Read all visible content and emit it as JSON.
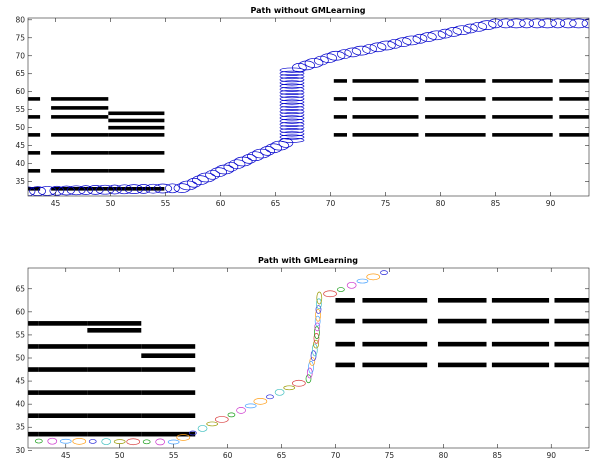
{
  "chart_data": [
    {
      "type": "scatter",
      "title": "Path without GMLearning",
      "xlabel": "",
      "ylabel": "",
      "xlim": [
        42.5,
        93.5
      ],
      "ylim": [
        31,
        80.5
      ],
      "xticks": [
        45,
        50,
        55,
        60,
        65,
        70,
        75,
        80,
        85,
        90
      ],
      "yticks": [
        35,
        40,
        45,
        50,
        55,
        60,
        65,
        70,
        75,
        80
      ],
      "grid": false,
      "obstacles": [
        {
          "x0": 42.5,
          "x1": 43.6,
          "y": [
            32.5,
            33.5,
            37.5,
            38.5,
            42.5,
            43.5,
            47.5,
            48.5,
            52.5,
            53.5,
            57.5,
            58.5,
            60.5
          ]
        },
        {
          "x0": 44.6,
          "x1": 49.8,
          "y": [
            32.5,
            33.5,
            37.5,
            38.5,
            42.5,
            43.5,
            47.5,
            48.5,
            52.5,
            53.5,
            55.0,
            56.0,
            57.5,
            58.5,
            59.5
          ]
        },
        {
          "x0": 49.8,
          "x1": 54.9,
          "y": [
            32.5,
            33.5,
            37.5,
            38.5,
            42.5,
            43.5,
            47.5,
            48.5,
            49.5,
            50.5,
            51.5,
            52.5,
            53.5,
            54.5
          ]
        },
        {
          "x0": 70.3,
          "x1": 71.5,
          "y": [
            47.5,
            48.5,
            52.5,
            53.5,
            57.5,
            58.5,
            62.5,
            63.5,
            65.0
          ]
        },
        {
          "x0": 72.0,
          "x1": 78.0,
          "y": [
            47.5,
            48.5,
            52.5,
            53.5,
            57.5,
            58.5,
            62.5,
            63.5,
            65.0
          ]
        },
        {
          "x0": 78.6,
          "x1": 84.1,
          "y": [
            47.5,
            48.5,
            52.5,
            53.5,
            57.5,
            58.5,
            62.5,
            63.5,
            65.0
          ]
        },
        {
          "x0": 84.7,
          "x1": 90.2,
          "y": [
            47.5,
            48.5,
            52.5,
            53.5,
            57.5,
            58.5,
            62.5,
            63.5,
            65.0
          ]
        },
        {
          "x0": 90.8,
          "x1": 93.5,
          "y": [
            47.5,
            48.5,
            52.5,
            53.5,
            57.5,
            58.5,
            62.5,
            63.5,
            65.0
          ]
        }
      ],
      "path": [
        [
          42.5,
          32.3
        ],
        [
          56.5,
          33.2
        ],
        [
          66.5,
          46.5
        ],
        [
          66.5,
          66.0
        ],
        [
          70.5,
          70.0
        ],
        [
          85.0,
          79.0
        ],
        [
          93.5,
          79.0
        ]
      ],
      "color": "#0000cc"
    },
    {
      "type": "scatter",
      "title": "Path with GMLearning",
      "xlabel": "",
      "ylabel": "",
      "xlim": [
        41.5,
        93.5
      ],
      "ylim": [
        30.5,
        69.5
      ],
      "xticks": [
        45,
        50,
        55,
        60,
        65,
        70,
        75,
        80,
        85,
        90
      ],
      "yticks": [
        30,
        35,
        40,
        45,
        50,
        55,
        60,
        65
      ],
      "grid": false,
      "obstacles": [
        {
          "x0": 41.5,
          "x1": 42.5,
          "y": [
            33.0,
            34.0,
            37.0,
            38.0,
            42.0,
            43.0,
            47.0,
            48.0,
            52.0,
            53.0,
            57.0,
            58.0,
            61.0
          ]
        },
        {
          "x0": 42.5,
          "x1": 47.0,
          "y": [
            33.0,
            34.0,
            37.0,
            38.0,
            42.0,
            43.0,
            47.0,
            48.0,
            52.0,
            53.0,
            57.0,
            58.0,
            61.0
          ]
        },
        {
          "x0": 47.0,
          "x1": 52.0,
          "y": [
            33.0,
            34.0,
            37.0,
            38.0,
            42.0,
            43.0,
            47.0,
            48.0,
            52.0,
            53.0,
            55.5,
            56.5,
            57.0,
            58.0
          ]
        },
        {
          "x0": 52.0,
          "x1": 57.0,
          "y": [
            33.0,
            34.0,
            37.0,
            38.0,
            42.0,
            43.0,
            47.0,
            48.0,
            50.0,
            51.0,
            52.0,
            53.0
          ]
        },
        {
          "x0": 70.0,
          "x1": 71.8,
          "y": [
            48.0,
            49.0,
            52.5,
            53.5,
            57.5,
            58.5,
            62.0,
            63.0,
            64.5
          ]
        },
        {
          "x0": 72.5,
          "x1": 78.5,
          "y": [
            48.0,
            49.0,
            52.5,
            53.5,
            57.5,
            58.5,
            62.0,
            63.0,
            64.5
          ]
        },
        {
          "x0": 79.5,
          "x1": 84.0,
          "y": [
            48.0,
            49.0,
            52.5,
            53.5,
            57.5,
            58.5,
            62.0,
            63.0,
            64.5
          ]
        },
        {
          "x0": 84.5,
          "x1": 89.8,
          "y": [
            48.0,
            49.0,
            52.5,
            53.5,
            57.5,
            58.5,
            62.0,
            63.0,
            64.5
          ]
        },
        {
          "x0": 90.3,
          "x1": 93.5,
          "y": [
            48.0,
            49.0,
            52.5,
            53.5,
            57.5,
            58.5,
            62.0,
            63.0,
            64.5
          ]
        }
      ],
      "path": [
        [
          42.5,
          32.0
        ],
        [
          55.0,
          31.8
        ],
        [
          67.5,
          45.5
        ],
        [
          68.2,
          53.0
        ],
        [
          68.5,
          63.0
        ],
        [
          74.5,
          68.5
        ]
      ],
      "colors": [
        "#1a9e1a",
        "#cc33cc",
        "#4aa3ff",
        "#ff9f1a",
        "#2b2bd9",
        "#40c0c0",
        "#999900",
        "#d94040"
      ]
    }
  ]
}
